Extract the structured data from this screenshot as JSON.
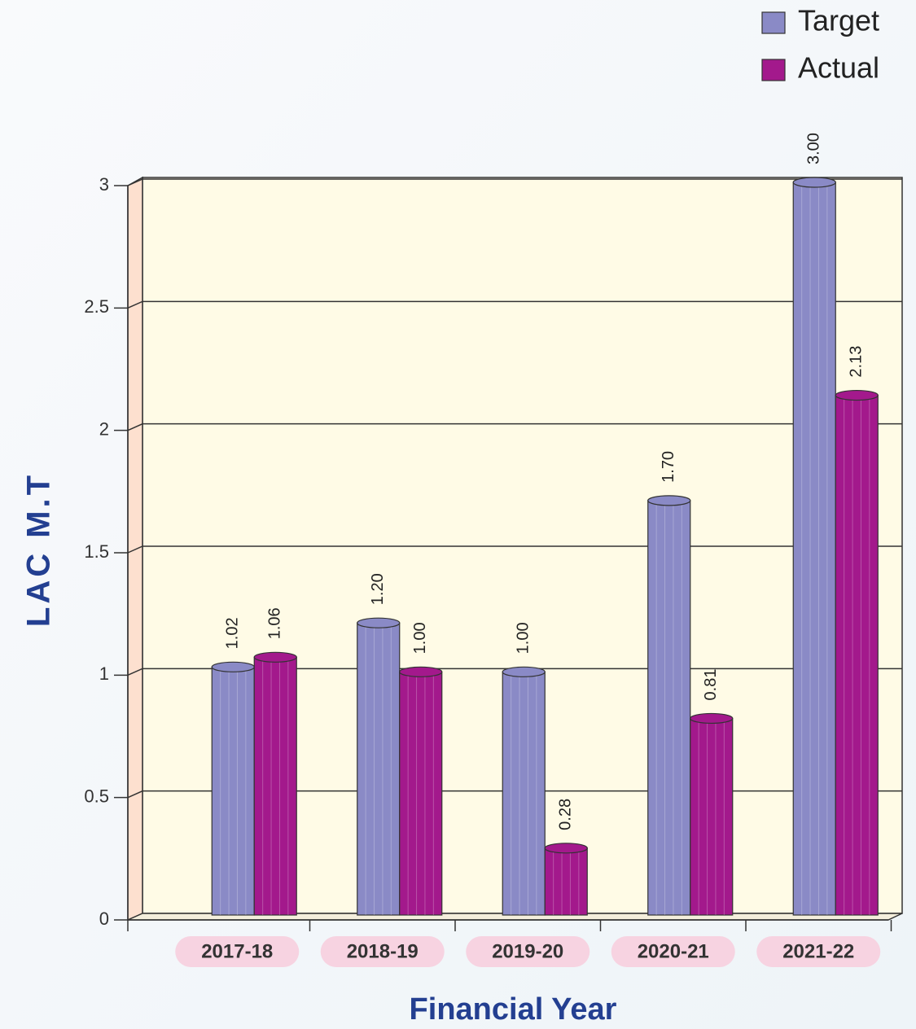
{
  "chart_data": {
    "type": "bar",
    "x_label": "Financial Year",
    "y_label": "LAC M.T",
    "categories": [
      "2017-18",
      "2018-19",
      "2019-20",
      "2020-21",
      "2021-22"
    ],
    "series": [
      {
        "name": "Target",
        "color": "#8a8ac6",
        "values": [
          1.02,
          1.2,
          1.0,
          1.7,
          3.0
        ],
        "value_labels": [
          "1.02",
          "1.20",
          "1.00",
          "1.70",
          "3.00"
        ]
      },
      {
        "name": "Actual",
        "color": "#a3198c",
        "values": [
          1.06,
          1.0,
          0.28,
          0.81,
          2.13
        ],
        "value_labels": [
          "1.06",
          "1.00",
          "0.28",
          "0.81",
          "2.13"
        ]
      }
    ],
    "ylim": [
      0,
      3
    ],
    "yticks": [
      0,
      0.5,
      1,
      1.5,
      2,
      2.5,
      3
    ],
    "grid": true,
    "legend": "top-right"
  }
}
